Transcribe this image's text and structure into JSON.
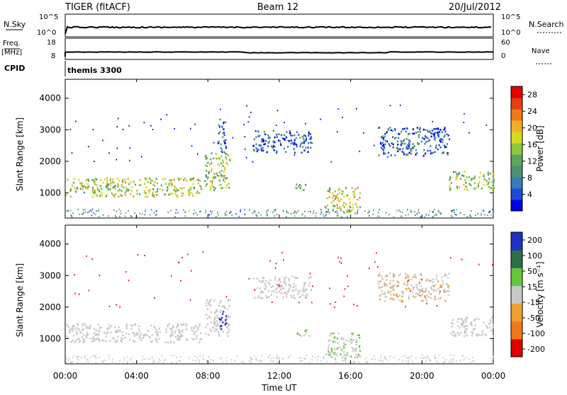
{
  "header": {
    "left": "TIGER (fitACF)",
    "center": "Beam 12",
    "right": "20/Jul/2012"
  },
  "status_panels": {
    "nsky_label": "N.Sky",
    "nsearch_label": "N.Search",
    "freq_label_line1": "Freq.",
    "freq_label_line2": "[MHz]",
    "nave_label": "Nave",
    "cpid_label": "CPID",
    "cpid_value": "themis 3300",
    "noise_left_ticks": [
      "10^5",
      "10^0"
    ],
    "noise_right_ticks": [
      "10^5",
      "10^0"
    ],
    "freq_left_ticks": [
      "18",
      "8"
    ],
    "freq_right_ticks": [
      "60",
      "0"
    ],
    "freq_mhz": 10,
    "nave": 8
  },
  "x_axis": {
    "label": "Time UT",
    "ticks": [
      "00:00",
      "04:00",
      "08:00",
      "12:00",
      "16:00",
      "20:00",
      "00:00"
    ]
  },
  "colors": {
    "power": [
      "#0000e6",
      "#1a4bd6",
      "#3a7ab8",
      "#4f8f6e",
      "#5aa65a",
      "#8cc83c",
      "#d8d81e",
      "#f0b020",
      "#f07818",
      "#e83c14",
      "#e00000"
    ],
    "velocity": [
      "#2030c0",
      "#2d6e4a",
      "#64c83c",
      "#c8c8c8",
      "#f0a030",
      "#f07818",
      "#e00000"
    ]
  },
  "chart_data": [
    {
      "type": "heatmap",
      "panel": "power",
      "ylabel": "Slant Range [km]",
      "yticks": [
        "1000",
        "2000",
        "3000",
        "4000"
      ],
      "ylim": [
        200,
        4600
      ],
      "xlim": [
        0,
        24
      ],
      "colorbar_label": "Power [dB]",
      "colorbar_ticks": [
        "4",
        "8",
        "12",
        "16",
        "20",
        "24",
        "28"
      ],
      "colorbar_range": [
        0,
        30
      ],
      "regions": [
        {
          "t": [
            0,
            7.6
          ],
          "r": [
            900,
            1500
          ],
          "value": 16
        },
        {
          "t": [
            7.8,
            9.2
          ],
          "r": [
            1100,
            2300
          ],
          "value": 14
        },
        {
          "t": [
            8.5,
            9.0
          ],
          "r": [
            2300,
            3400
          ],
          "value": 6
        },
        {
          "t": [
            10.5,
            13.8
          ],
          "r": [
            2300,
            3000
          ],
          "value": 5
        },
        {
          "t": [
            12.8,
            13.7
          ],
          "r": [
            1100,
            1300
          ],
          "value": 14
        },
        {
          "t": [
            14.5,
            16.5
          ],
          "r": [
            400,
            1200
          ],
          "value": 18
        },
        {
          "t": [
            17.5,
            21.5
          ],
          "r": [
            2200,
            3100
          ],
          "value": 6
        },
        {
          "t": [
            21.5,
            24
          ],
          "r": [
            1100,
            1700
          ],
          "value": 14
        }
      ]
    },
    {
      "type": "heatmap",
      "panel": "velocity",
      "ylabel": "Slant Range [km]",
      "yticks": [
        "1000",
        "2000",
        "3000",
        "4000"
      ],
      "ylim": [
        200,
        4600
      ],
      "xlim": [
        0,
        24
      ],
      "colorbar_label": "Velocity [m s⁻¹]",
      "colorbar_ticks": [
        "200",
        "100",
        "50",
        "15",
        "-15",
        "-50",
        "-100",
        "-200"
      ],
      "colorbar_range": [
        -250,
        250
      ],
      "regions": [
        {
          "t": [
            0,
            7.6
          ],
          "r": [
            900,
            1500
          ],
          "value": 0
        },
        {
          "t": [
            7.8,
            9.2
          ],
          "r": [
            1100,
            2300
          ],
          "value": 0
        },
        {
          "t": [
            8.6,
            9.0
          ],
          "r": [
            1300,
            1900
          ],
          "value": 200
        },
        {
          "t": [
            10.5,
            13.8
          ],
          "r": [
            2300,
            3000
          ],
          "value": 0
        },
        {
          "t": [
            12.8,
            13.7
          ],
          "r": [
            1100,
            1300
          ],
          "value": 30
        },
        {
          "t": [
            14.5,
            16.5
          ],
          "r": [
            400,
            1200
          ],
          "value": 20
        },
        {
          "t": [
            17.5,
            21.5
          ],
          "r": [
            2200,
            3100
          ],
          "value": -20
        },
        {
          "t": [
            21.5,
            24
          ],
          "r": [
            1100,
            1700
          ],
          "value": 0
        }
      ]
    }
  ]
}
